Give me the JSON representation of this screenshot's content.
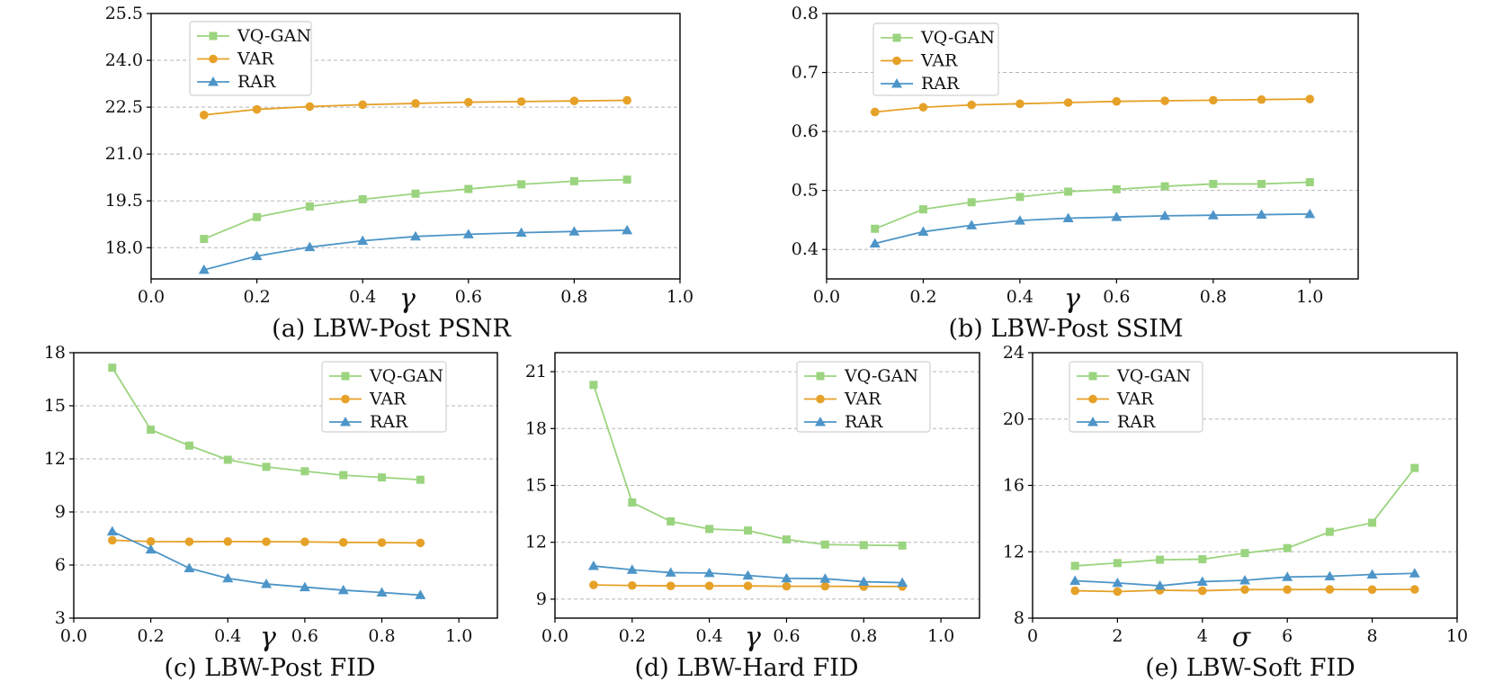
{
  "series_styles": [
    {
      "name": "VQ-GAN",
      "color": "#9bd47f",
      "marker": "square"
    },
    {
      "name": "VAR",
      "color": "#e6a128",
      "marker": "circle"
    },
    {
      "name": "RAR",
      "color": "#4d95c8",
      "marker": "triangle"
    }
  ],
  "chart_data": [
    {
      "type": "line",
      "caption": "(a) LBW-Post PSNR",
      "xlabel": "γ",
      "xlim": [
        0.0,
        1.0
      ],
      "ylim": [
        17.0,
        25.5
      ],
      "xticks": [
        0.0,
        0.2,
        0.4,
        0.6,
        0.8,
        1.0
      ],
      "xtick_labels": [
        "0.0",
        "0.2",
        "0.4",
        "0.6",
        "0.8",
        "1.0"
      ],
      "yticks": [
        18.0,
        19.5,
        21.0,
        22.5,
        24.0,
        25.5
      ],
      "ytick_labels": [
        "18.0",
        "19.5",
        "21.0",
        "22.5",
        "24.0",
        "25.5"
      ],
      "legend_position": "top-left",
      "x": [
        0.1,
        0.2,
        0.3,
        0.4,
        0.5,
        0.6,
        0.7,
        0.8,
        0.9
      ],
      "series": [
        {
          "name": "VQ-GAN",
          "values": [
            18.28,
            18.98,
            19.32,
            19.55,
            19.73,
            19.88,
            20.03,
            20.13,
            20.18
          ]
        },
        {
          "name": "VAR",
          "values": [
            22.25,
            22.43,
            22.52,
            22.58,
            22.62,
            22.66,
            22.68,
            22.7,
            22.72
          ]
        },
        {
          "name": "RAR",
          "values": [
            17.29,
            17.73,
            18.02,
            18.22,
            18.36,
            18.43,
            18.48,
            18.52,
            18.56
          ]
        }
      ]
    },
    {
      "type": "line",
      "caption": "(b) LBW-Post SSIM",
      "xlabel": "γ",
      "xlim": [
        0.0,
        1.1
      ],
      "ylim": [
        0.35,
        0.8
      ],
      "xticks": [
        0.0,
        0.2,
        0.4,
        0.6,
        0.8,
        1.0
      ],
      "xtick_labels": [
        "0.0",
        "0.2",
        "0.4",
        "0.6",
        "0.8",
        "1.0"
      ],
      "yticks": [
        0.4,
        0.5,
        0.6,
        0.7,
        0.8
      ],
      "ytick_labels": [
        "0.4",
        "0.5",
        "0.6",
        "0.7",
        "0.8"
      ],
      "legend_position": "top-left",
      "x": [
        0.1,
        0.2,
        0.3,
        0.4,
        0.5,
        0.6,
        0.7,
        0.8,
        0.9,
        1.0
      ],
      "series": [
        {
          "name": "VQ-GAN",
          "values": [
            0.435,
            0.468,
            0.48,
            0.489,
            0.498,
            0.502,
            0.507,
            0.511,
            0.511,
            0.514
          ]
        },
        {
          "name": "VAR",
          "values": [
            0.633,
            0.641,
            0.645,
            0.647,
            0.649,
            0.651,
            0.652,
            0.653,
            0.654,
            0.655
          ]
        },
        {
          "name": "RAR",
          "values": [
            0.41,
            0.43,
            0.441,
            0.449,
            0.453,
            0.455,
            0.457,
            0.458,
            0.459,
            0.46
          ]
        }
      ]
    },
    {
      "type": "line",
      "caption": "(c)  LBW-Post FID",
      "xlabel": "γ",
      "xlim": [
        0.0,
        1.1
      ],
      "ylim": [
        3,
        18
      ],
      "xticks": [
        0.0,
        0.2,
        0.4,
        0.6,
        0.8,
        1.0
      ],
      "xtick_labels": [
        "0.0",
        "0.2",
        "0.4",
        "0.6",
        "0.8",
        "1.0"
      ],
      "yticks": [
        3,
        6,
        9,
        12,
        15,
        18
      ],
      "ytick_labels": [
        "3",
        "6",
        "9",
        "12",
        "15",
        "18"
      ],
      "legend_position": "top-right",
      "x": [
        0.1,
        0.2,
        0.3,
        0.4,
        0.5,
        0.6,
        0.7,
        0.8,
        0.9
      ],
      "series": [
        {
          "name": "VQ-GAN",
          "values": [
            17.15,
            13.65,
            12.75,
            11.95,
            11.55,
            11.3,
            11.08,
            10.95,
            10.82
          ]
        },
        {
          "name": "VAR",
          "values": [
            7.4,
            7.33,
            7.32,
            7.33,
            7.32,
            7.31,
            7.28,
            7.27,
            7.25
          ]
        },
        {
          "name": "RAR",
          "values": [
            7.9,
            6.88,
            5.82,
            5.25,
            4.93,
            4.75,
            4.58,
            4.45,
            4.3
          ]
        }
      ]
    },
    {
      "type": "line",
      "caption": "(d) LBW-Hard FID",
      "xlabel": "γ",
      "xlim": [
        0.0,
        1.1
      ],
      "ylim": [
        8,
        22
      ],
      "xticks": [
        0.0,
        0.2,
        0.4,
        0.6,
        0.8,
        1.0
      ],
      "xtick_labels": [
        "0.0",
        "0.2",
        "0.4",
        "0.6",
        "0.8",
        "1.0"
      ],
      "yticks": [
        9,
        12,
        15,
        18,
        21
      ],
      "ytick_labels": [
        "9",
        "12",
        "15",
        "18",
        "21"
      ],
      "legend_position": "top-right",
      "x": [
        0.1,
        0.2,
        0.3,
        0.4,
        0.5,
        0.6,
        0.7,
        0.8,
        0.9
      ],
      "series": [
        {
          "name": "VQ-GAN",
          "values": [
            20.3,
            14.1,
            13.1,
            12.7,
            12.62,
            12.15,
            11.88,
            11.85,
            11.83
          ]
        },
        {
          "name": "VAR",
          "values": [
            9.75,
            9.72,
            9.7,
            9.7,
            9.7,
            9.68,
            9.68,
            9.67,
            9.67
          ]
        },
        {
          "name": "RAR",
          "values": [
            10.75,
            10.55,
            10.4,
            10.38,
            10.25,
            10.1,
            10.08,
            9.92,
            9.87
          ]
        }
      ]
    },
    {
      "type": "line",
      "caption": "(e) LBW-Soft FID",
      "xlabel": "σ",
      "xlim": [
        0,
        10
      ],
      "ylim": [
        8,
        24
      ],
      "xticks": [
        0,
        2,
        4,
        6,
        8,
        10
      ],
      "xtick_labels": [
        "0",
        "2",
        "4",
        "6",
        "8",
        "10"
      ],
      "yticks": [
        8,
        12,
        16,
        20,
        24
      ],
      "ytick_labels": [
        "8",
        "12",
        "16",
        "20",
        "24"
      ],
      "legend_position": "top-left",
      "x": [
        1,
        2,
        3,
        4,
        5,
        6,
        7,
        8,
        9
      ],
      "series": [
        {
          "name": "VQ-GAN",
          "values": [
            11.15,
            11.32,
            11.52,
            11.55,
            11.92,
            12.22,
            13.2,
            13.75,
            17.05
          ]
        },
        {
          "name": "VAR",
          "values": [
            9.65,
            9.6,
            9.68,
            9.65,
            9.72,
            9.72,
            9.73,
            9.72,
            9.73
          ]
        },
        {
          "name": "RAR",
          "values": [
            10.25,
            10.12,
            9.95,
            10.2,
            10.28,
            10.48,
            10.52,
            10.63,
            10.7
          ]
        }
      ]
    }
  ]
}
